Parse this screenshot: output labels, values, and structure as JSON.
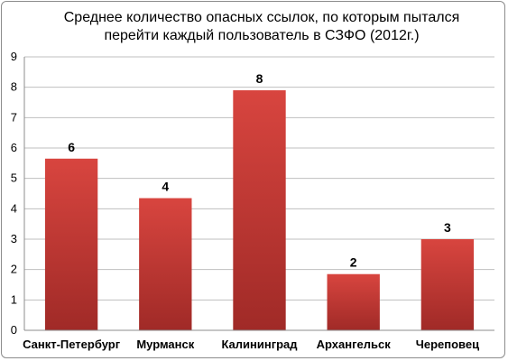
{
  "chart_data": {
    "type": "bar",
    "title_lines": [
      "Среднее количество опасных ссылок, по которым пытался",
      "перейти каждый пользователь в СЗФО (2012г.)"
    ],
    "categories": [
      "Санкт-Петербург",
      "Мурманск",
      "Калининград",
      "Архангельск",
      "Череповец"
    ],
    "values": [
      5.65,
      4.35,
      7.9,
      1.85,
      3.0
    ],
    "data_labels": [
      "6",
      "4",
      "8",
      "2",
      "3"
    ],
    "xlabel": "",
    "ylabel": "",
    "ylim": [
      0,
      9
    ],
    "yticks": [
      "0",
      "1",
      "2",
      "3",
      "4",
      "5",
      "6",
      "7",
      "8",
      "9"
    ],
    "grid": true,
    "legend": "none",
    "colors": {
      "bar_top": "#d8453f",
      "bar_bottom": "#a02a27",
      "grid": "#bfbfbf",
      "axis": "#8c8c8c"
    }
  }
}
